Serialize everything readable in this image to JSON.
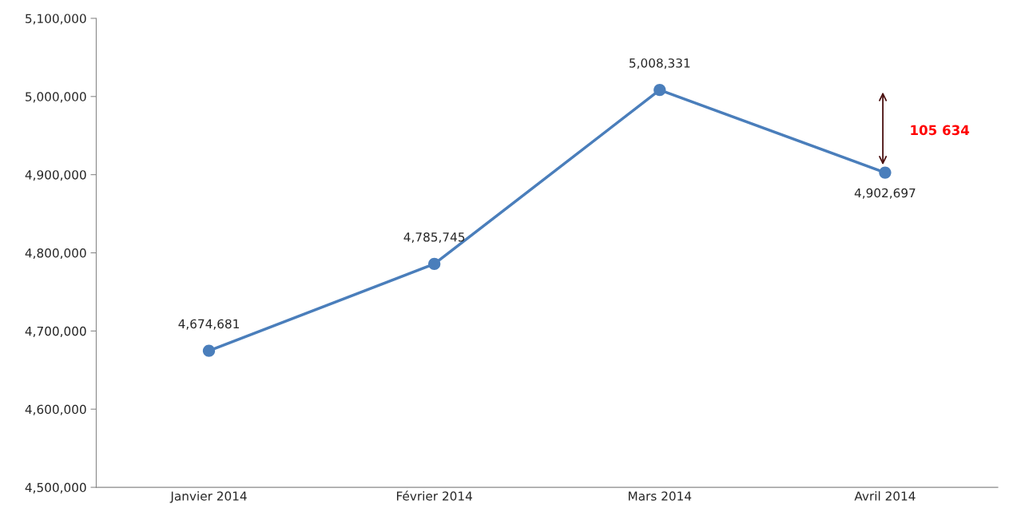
{
  "chart_data": {
    "type": "line",
    "categories": [
      "Janvier 2014",
      "Février 2014",
      "Mars 2014",
      "Avril 2014"
    ],
    "series": [
      {
        "color": "#4a7ebb",
        "values": [
          4674681,
          4785745,
          5008331,
          4902697
        ],
        "value_labels": [
          "4,674,681",
          "4,785,745",
          "5,008,331",
          "4,902,697"
        ]
      }
    ],
    "ylim": [
      4500000,
      5100000
    ],
    "yticks": [
      {
        "value": 4500000,
        "label": "4,500,000"
      },
      {
        "value": 4600000,
        "label": "4,600,000"
      },
      {
        "value": 4700000,
        "label": "4,700,000"
      },
      {
        "value": 4800000,
        "label": "4,800,000"
      },
      {
        "value": 4900000,
        "label": "4,900,000"
      },
      {
        "value": 5000000,
        "label": "5,000,000"
      },
      {
        "value": 5100000,
        "label": "5,100,000"
      }
    ],
    "marker": "circle",
    "line_style": "solid",
    "grid": false,
    "legend": false,
    "annotations": [
      "105 634"
    ]
  }
}
